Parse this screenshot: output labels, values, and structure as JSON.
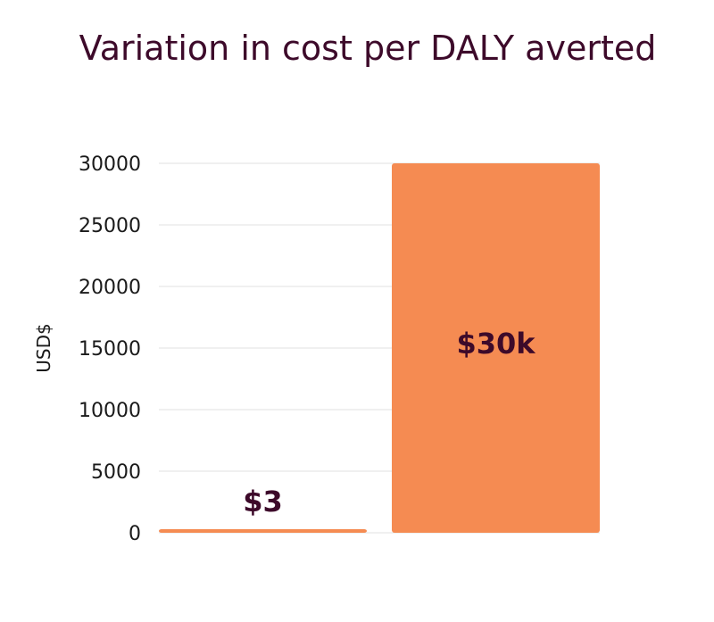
{
  "chart_data": {
    "type": "bar",
    "title": "Variation in cost per DALY averted",
    "xlabel": "",
    "ylabel": "USD$",
    "categories": [
      "",
      ""
    ],
    "values": [
      3,
      30000
    ],
    "data_labels": [
      "$3",
      "$30k"
    ],
    "ylim": [
      0,
      30000
    ],
    "yticks": [
      0,
      5000,
      10000,
      15000,
      20000,
      25000,
      30000
    ],
    "grid": true,
    "colors": {
      "bar": "#f58b52",
      "title": "#3d0a2a",
      "grid": "#e2e2e2",
      "label": "#3d0a2a"
    }
  }
}
